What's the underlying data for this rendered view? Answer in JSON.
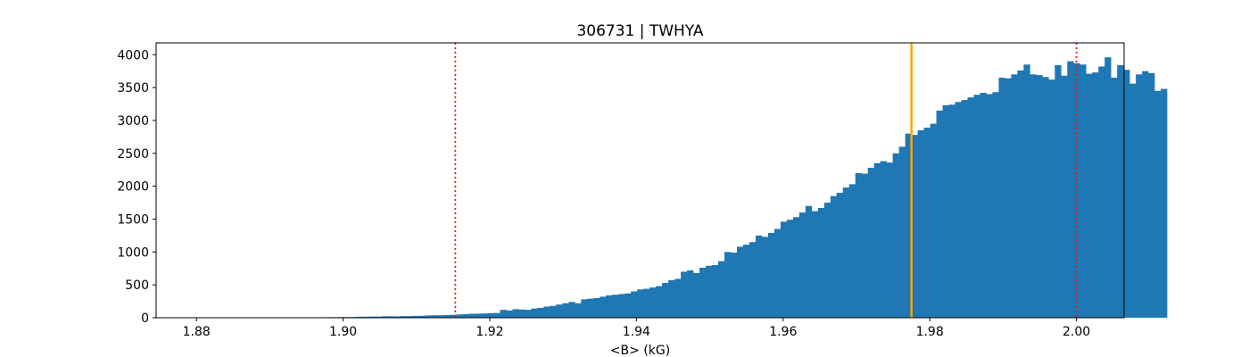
{
  "chart_data": {
    "type": "bar",
    "title": "306731 | TWHYA",
    "xlabel": "<B> (kG)",
    "ylabel": "",
    "xlim": [
      1.8745,
      2.0065
    ],
    "ylim": [
      0,
      4180
    ],
    "xticks": [
      1.88,
      1.9,
      1.92,
      1.94,
      1.96,
      1.98,
      2.0
    ],
    "xtick_labels": [
      "1.88",
      "1.90",
      "1.92",
      "1.94",
      "1.96",
      "1.98",
      "2.00"
    ],
    "yticks": [
      0,
      500,
      1000,
      1500,
      2000,
      2500,
      3000,
      3500,
      4000
    ],
    "ytick_labels": [
      "0",
      "500",
      "1000",
      "1500",
      "2000",
      "2500",
      "3000",
      "3500",
      "4000"
    ],
    "grid": false,
    "bar_color": "#1f77b4",
    "bin_edges_start": 1.8925,
    "bin_width": 0.00085,
    "values": [
      5,
      5,
      2,
      5,
      3,
      5,
      8,
      8,
      10,
      10,
      12,
      15,
      15,
      18,
      18,
      22,
      22,
      20,
      25,
      25,
      28,
      30,
      35,
      38,
      38,
      42,
      45,
      50,
      55,
      60,
      62,
      65,
      70,
      72,
      120,
      110,
      130,
      125,
      120,
      140,
      150,
      170,
      180,
      200,
      220,
      240,
      220,
      280,
      290,
      300,
      320,
      340,
      350,
      360,
      370,
      400,
      430,
      440,
      460,
      480,
      530,
      570,
      590,
      700,
      720,
      680,
      760,
      790,
      800,
      860,
      1000,
      990,
      1080,
      1110,
      1150,
      1250,
      1230,
      1290,
      1350,
      1460,
      1490,
      1530,
      1600,
      1700,
      1620,
      1670,
      1750,
      1850,
      1900,
      1980,
      2030,
      2200,
      2190,
      2280,
      2350,
      2380,
      2360,
      2500,
      2600,
      2800,
      2780,
      2850,
      2890,
      2950,
      3150,
      3230,
      3240,
      3280,
      3310,
      3350,
      3390,
      3420,
      3400,
      3430,
      3650,
      3640,
      3700,
      3760,
      3850,
      3700,
      3690,
      3660,
      3620,
      3840,
      3680,
      3900,
      3870,
      3850,
      3710,
      3730,
      3820,
      3960,
      3650,
      3840,
      3770,
      3560,
      3700,
      3750,
      3720,
      3450,
      3480
    ],
    "vlines": [
      {
        "x": 1.9153,
        "color": "#e41a1c",
        "style": "dotted"
      },
      {
        "x": 1.9775,
        "color": "#ffa500",
        "style": "solid"
      },
      {
        "x": 2.0,
        "color": "#e41a1c",
        "style": "dotted"
      }
    ]
  }
}
